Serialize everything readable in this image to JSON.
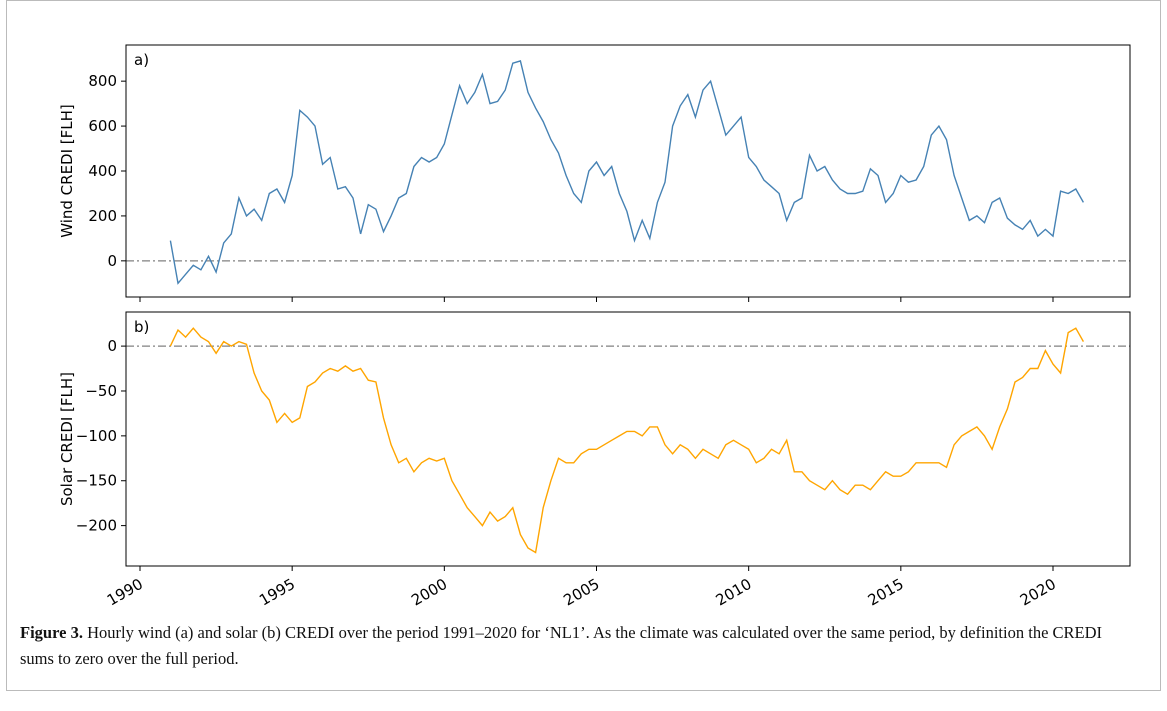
{
  "chart_data": [
    {
      "type": "line",
      "label": "a)",
      "ylabel": "Wind CREDI [FLH]",
      "xlim": [
        1989.54,
        2022.53
      ],
      "xticks": [
        1990,
        1995,
        2000,
        2005,
        2010,
        2015,
        2020
      ],
      "ylim": [
        -161,
        961
      ],
      "yticks": [
        0,
        200,
        400,
        600,
        800
      ],
      "hline": 0,
      "x": [
        1991.0,
        1991.25,
        1991.5,
        1991.75,
        1992.0,
        1992.25,
        1992.5,
        1992.75,
        1993.0,
        1993.25,
        1993.5,
        1993.75,
        1994.0,
        1994.25,
        1994.5,
        1994.75,
        1995.0,
        1995.25,
        1995.5,
        1995.75,
        1996.0,
        1996.25,
        1996.5,
        1996.75,
        1997.0,
        1997.25,
        1997.5,
        1997.75,
        1998.0,
        1998.25,
        1998.5,
        1998.75,
        1999.0,
        1999.25,
        1999.5,
        1999.75,
        2000.0,
        2000.25,
        2000.5,
        2000.75,
        2001.0,
        2001.25,
        2001.5,
        2001.75,
        2002.0,
        2002.25,
        2002.5,
        2002.75,
        2003.0,
        2003.25,
        2003.5,
        2003.75,
        2004.0,
        2004.25,
        2004.5,
        2004.75,
        2005.0,
        2005.25,
        2005.5,
        2005.75,
        2006.0,
        2006.25,
        2006.5,
        2006.75,
        2007.0,
        2007.25,
        2007.5,
        2007.75,
        2008.0,
        2008.25,
        2008.5,
        2008.75,
        2009.0,
        2009.25,
        2009.5,
        2009.75,
        2010.0,
        2010.25,
        2010.5,
        2010.75,
        2011.0,
        2011.25,
        2011.5,
        2011.75,
        2012.0,
        2012.25,
        2012.5,
        2012.75,
        2013.0,
        2013.25,
        2013.5,
        2013.75,
        2014.0,
        2014.25,
        2014.5,
        2014.75,
        2015.0,
        2015.25,
        2015.5,
        2015.75,
        2016.0,
        2016.25,
        2016.5,
        2016.75,
        2017.0,
        2017.25,
        2017.5,
        2017.75,
        2018.0,
        2018.25,
        2018.5,
        2018.75,
        2019.0,
        2019.25,
        2019.5,
        2019.75,
        2020.0,
        2020.25,
        2020.5,
        2020.75,
        2021.0
      ],
      "series": [
        {
          "color": "#4682b4",
          "values": [
            90,
            -100,
            -60,
            -20,
            -40,
            20,
            -50,
            80,
            120,
            280,
            200,
            230,
            180,
            300,
            320,
            260,
            380,
            670,
            640,
            600,
            430,
            460,
            320,
            330,
            280,
            120,
            250,
            230,
            130,
            200,
            280,
            300,
            420,
            460,
            440,
            460,
            520,
            650,
            780,
            700,
            750,
            830,
            700,
            710,
            760,
            880,
            890,
            750,
            680,
            620,
            540,
            480,
            380,
            300,
            260,
            400,
            440,
            380,
            420,
            300,
            220,
            90,
            180,
            100,
            260,
            350,
            600,
            690,
            740,
            640,
            760,
            800,
            680,
            560,
            600,
            640,
            460,
            420,
            360,
            330,
            300,
            180,
            260,
            280,
            470,
            400,
            420,
            360,
            320,
            300,
            300,
            310,
            410,
            380,
            260,
            300,
            380,
            350,
            360,
            420,
            560,
            600,
            540,
            380,
            280,
            180,
            200,
            170,
            260,
            280,
            190,
            160,
            140,
            180,
            110,
            140,
            110,
            310,
            300,
            320,
            260
          ]
        }
      ]
    },
    {
      "type": "line",
      "label": "b)",
      "ylabel": "Solar CREDI [FLH]",
      "xlim": [
        1989.54,
        2022.53
      ],
      "xticks": [
        1990,
        1995,
        2000,
        2005,
        2010,
        2015,
        2020
      ],
      "ylim": [
        -245,
        38
      ],
      "yticks": [
        {
          "value": -200,
          "label": "−200"
        },
        {
          "value": -150,
          "label": "−150"
        },
        {
          "value": -100,
          "label": "−100"
        },
        {
          "value": -50,
          "label": "−50"
        },
        0
      ],
      "hline": 0,
      "x": [
        1991.0,
        1991.25,
        1991.5,
        1991.75,
        1992.0,
        1992.25,
        1992.5,
        1992.75,
        1993.0,
        1993.25,
        1993.5,
        1993.75,
        1994.0,
        1994.25,
        1994.5,
        1994.75,
        1995.0,
        1995.25,
        1995.5,
        1995.75,
        1996.0,
        1996.25,
        1996.5,
        1996.75,
        1997.0,
        1997.25,
        1997.5,
        1997.75,
        1998.0,
        1998.25,
        1998.5,
        1998.75,
        1999.0,
        1999.25,
        1999.5,
        1999.75,
        2000.0,
        2000.25,
        2000.5,
        2000.75,
        2001.0,
        2001.25,
        2001.5,
        2001.75,
        2002.0,
        2002.25,
        2002.5,
        2002.75,
        2003.0,
        2003.25,
        2003.5,
        2003.75,
        2004.0,
        2004.25,
        2004.5,
        2004.75,
        2005.0,
        2005.25,
        2005.5,
        2005.75,
        2006.0,
        2006.25,
        2006.5,
        2006.75,
        2007.0,
        2007.25,
        2007.5,
        2007.75,
        2008.0,
        2008.25,
        2008.5,
        2008.75,
        2009.0,
        2009.25,
        2009.5,
        2009.75,
        2010.0,
        2010.25,
        2010.5,
        2010.75,
        2011.0,
        2011.25,
        2011.5,
        2011.75,
        2012.0,
        2012.25,
        2012.5,
        2012.75,
        2013.0,
        2013.25,
        2013.5,
        2013.75,
        2014.0,
        2014.25,
        2014.5,
        2014.75,
        2015.0,
        2015.25,
        2015.5,
        2015.75,
        2016.0,
        2016.25,
        2016.5,
        2016.75,
        2017.0,
        2017.25,
        2017.5,
        2017.75,
        2018.0,
        2018.25,
        2018.5,
        2018.75,
        2019.0,
        2019.25,
        2019.5,
        2019.75,
        2020.0,
        2020.25,
        2020.5,
        2020.75,
        2021.0
      ],
      "series": [
        {
          "color": "#ffa500",
          "values": [
            0,
            18,
            10,
            20,
            10,
            5,
            -8,
            5,
            0,
            5,
            2,
            -30,
            -50,
            -60,
            -85,
            -75,
            -85,
            -80,
            -45,
            -40,
            -30,
            -25,
            -28,
            -22,
            -28,
            -25,
            -38,
            -40,
            -80,
            -110,
            -130,
            -125,
            -140,
            -130,
            -125,
            -128,
            -125,
            -150,
            -165,
            -180,
            -190,
            -200,
            -185,
            -195,
            -190,
            -180,
            -210,
            -225,
            -230,
            -180,
            -150,
            -125,
            -130,
            -130,
            -120,
            -115,
            -115,
            -110,
            -105,
            -100,
            -95,
            -95,
            -100,
            -90,
            -90,
            -110,
            -120,
            -110,
            -115,
            -125,
            -115,
            -120,
            -125,
            -110,
            -105,
            -110,
            -115,
            -130,
            -125,
            -115,
            -120,
            -105,
            -140,
            -140,
            -150,
            -155,
            -160,
            -150,
            -160,
            -165,
            -155,
            -155,
            -160,
            -150,
            -140,
            -145,
            -145,
            -140,
            -130,
            -130,
            -130,
            -130,
            -135,
            -110,
            -100,
            -95,
            -90,
            -100,
            -115,
            -90,
            -70,
            -40,
            -35,
            -25,
            -25,
            -5,
            -20,
            -30,
            15,
            20,
            5
          ]
        }
      ]
    }
  ],
  "caption": {
    "label": "Figure 3.",
    "text": "Hourly wind (a) and solar (b) CREDI over the period 1991–2020 for ‘NL1’. As the climate was calculated over the same period, by definition the CREDI sums to zero over the full period."
  }
}
